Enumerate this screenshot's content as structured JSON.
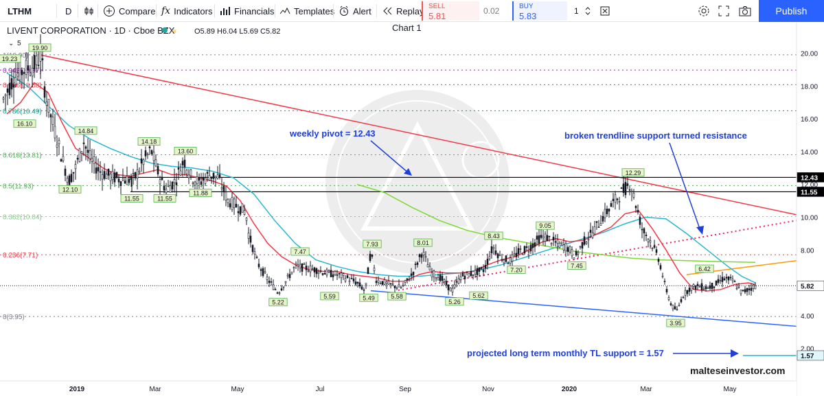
{
  "toolbar": {
    "symbol": "LTHM",
    "interval": "D",
    "compare": "Compare",
    "indicators": "Indicators",
    "financials": "Financials",
    "templates": "Templates",
    "alert": "Alert",
    "replay": "Replay",
    "sell_label": "SELL",
    "sell_price": "5.81",
    "spread": "0.02",
    "buy_label": "BUY",
    "buy_price": "5.83",
    "quantity": "1",
    "publish": "Publish",
    "icons": [
      "chart-style-icon",
      "compare-icon",
      "indicators-icon",
      "financials-icon",
      "templates-icon",
      "alert-icon",
      "replay-icon",
      "settings-icon",
      "fullscreen-icon",
      "camera-icon"
    ]
  },
  "chart_header": {
    "title": "LIVENT CORPORATION · 1D · Cboe BZX",
    "ohlc": "O5.89 H6.04 L5.69 C5.82",
    "chart_name": "Chart 1",
    "visibility_count": "5"
  },
  "chart_data": {
    "type": "candlestick",
    "symbol": "LTHM",
    "ylim": [
      1.2,
      21.2
    ],
    "price_ticks": [
      "20.00",
      "18.00",
      "16.00",
      "14.00",
      "12.00",
      "10.00",
      "8.00",
      "6.00",
      "4.00",
      "2.00"
    ],
    "time_ticks": [
      "2019",
      "Mar",
      "May",
      "Jul",
      "Sep",
      "Nov",
      "2020",
      "Mar",
      "May"
    ],
    "last_price": "5.82",
    "price_markers": [
      "12.43",
      "11.55",
      "5.82",
      "1.57"
    ],
    "fib_levels": [
      {
        "label": "1(19.90)",
        "value": 19.9,
        "color": "#787b86"
      },
      {
        "label": "0.942(18.97)",
        "value": 18.97,
        "color": "#9c27b0"
      },
      {
        "label": "0.886(18.08)",
        "value": 18.08,
        "color": "#f23645"
      },
      {
        "label": "0.786(16.49)",
        "value": 16.49,
        "color": "#089981"
      },
      {
        "label": "0.618(13.81)",
        "value": 13.81,
        "color": "#4caf50"
      },
      {
        "label": "0.5(11.93)",
        "value": 11.93,
        "color": "#4caf50"
      },
      {
        "label": "0.382(10.04)",
        "value": 10.04,
        "color": "#81c784"
      },
      {
        "label": "0.236(7.71)",
        "value": 7.71,
        "color": "#f23645"
      },
      {
        "label": "0(3.95)",
        "value": 3.95,
        "color": "#787b86"
      }
    ],
    "swing_labels": [
      {
        "text": "19.23",
        "value": 19.23
      },
      {
        "text": "19.90",
        "value": 19.9
      },
      {
        "text": "16.10",
        "value": 16.1
      },
      {
        "text": "14.84",
        "value": 14.84
      },
      {
        "text": "14.18",
        "value": 14.18
      },
      {
        "text": "13.60",
        "value": 13.6
      },
      {
        "text": "12.10",
        "value": 12.1
      },
      {
        "text": "11.55",
        "value": 11.55
      },
      {
        "text": "11.55",
        "value": 11.55
      },
      {
        "text": "11.88",
        "value": 11.88
      },
      {
        "text": "7.47",
        "value": 7.47
      },
      {
        "text": "5.22",
        "value": 5.22
      },
      {
        "text": "5.59",
        "value": 5.59
      },
      {
        "text": "7.93",
        "value": 7.93
      },
      {
        "text": "5.49",
        "value": 5.49
      },
      {
        "text": "5.58",
        "value": 5.58
      },
      {
        "text": "8.01",
        "value": 8.01
      },
      {
        "text": "5.26",
        "value": 5.26
      },
      {
        "text": "8.43",
        "value": 8.43
      },
      {
        "text": "5.62",
        "value": 5.62
      },
      {
        "text": "7.20",
        "value": 7.2
      },
      {
        "text": "9.05",
        "value": 9.05
      },
      {
        "text": "7.45",
        "value": 7.45
      },
      {
        "text": "12.29",
        "value": 12.29
      },
      {
        "text": "6.42",
        "value": 6.42
      },
      {
        "text": "3.95",
        "value": 3.95
      }
    ],
    "annotations": [
      "weekly pivot = 12.43",
      "broken trendline support turned resistance",
      "projected long term monthly TL support = 1.57"
    ],
    "watermark": "malteseinvestor.com",
    "series": [
      {
        "name": "price",
        "color": "#131722"
      },
      {
        "color": "#f23645"
      },
      {
        "color": "#26b6cf"
      },
      {
        "color": "#7cd932"
      }
    ]
  }
}
